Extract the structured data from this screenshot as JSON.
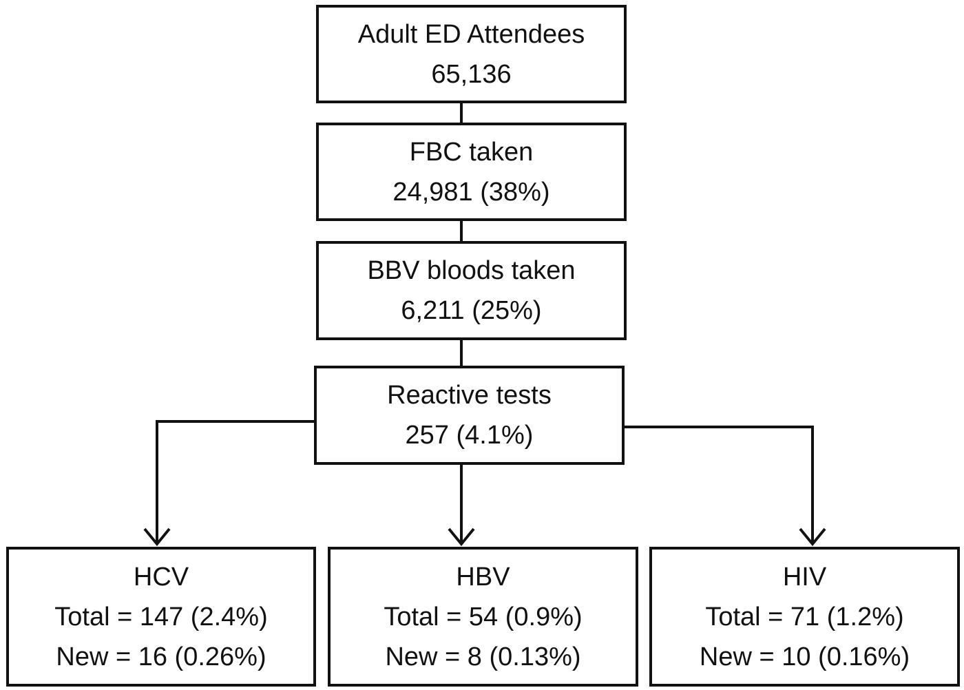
{
  "flow": [
    {
      "title": "Adult ED Attendees",
      "value": "65,136"
    },
    {
      "title": "FBC taken",
      "value": "24,981 (38%)"
    },
    {
      "title": "BBV bloods taken",
      "value": "6,211 (25%)"
    },
    {
      "title": "Reactive tests",
      "value": "257 (4.1%)"
    }
  ],
  "outcomes": [
    {
      "title": "HCV",
      "total": "Total = 147 (2.4%)",
      "new": "New = 16 (0.26%)"
    },
    {
      "title": "HBV",
      "total": "Total = 54 (0.9%)",
      "new": "New = 8 (0.13%)"
    },
    {
      "title": "HIV",
      "total": "Total = 71 (1.2%)",
      "new": "New = 10 (0.16%)"
    }
  ]
}
